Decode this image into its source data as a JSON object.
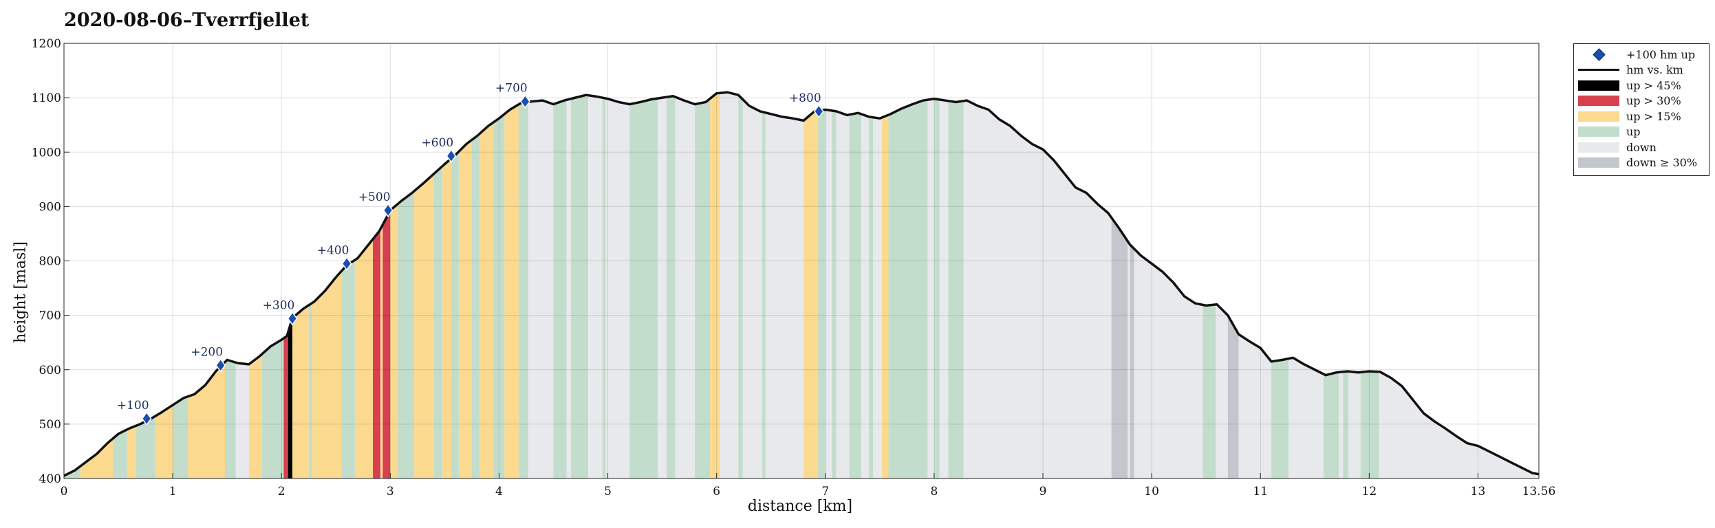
{
  "chart_data": {
    "type": "area",
    "title": "2020-08-06–Tverrfjellet",
    "xlabel": "distance [km]",
    "ylabel": "height [masl]",
    "xlim": [
      0,
      13.56
    ],
    "ylim": [
      400,
      1200
    ],
    "xticks": [
      0,
      1,
      2,
      3,
      4,
      5,
      6,
      7,
      8,
      9,
      10,
      11,
      12,
      13,
      13.56
    ],
    "xtick_labels": [
      "0",
      "1",
      "2",
      "3",
      "4",
      "5",
      "6",
      "7",
      "8",
      "9",
      "10",
      "11",
      "12",
      "13",
      "13.56"
    ],
    "yticks": [
      400,
      500,
      600,
      700,
      800,
      900,
      1000,
      1100,
      1200
    ],
    "ytick_labels": [
      "400",
      "500",
      "600",
      "700",
      "800",
      "900",
      "1000",
      "1100",
      "1200"
    ],
    "grid": true,
    "legend_position": "outside-top-right",
    "colors": {
      "profile": "#111111",
      "up_gt_45": "#000000",
      "up_gt_30": "#d6404f",
      "up_gt_15": "#fbd98e",
      "up": "#c2ddcc",
      "down": "#e8e9ec",
      "down_ge_30": "#c4c6ce",
      "marker": "#1a4fb0"
    },
    "legend": [
      {
        "key": "marker",
        "label": "+100 hm up",
        "kind": "marker"
      },
      {
        "key": "profile",
        "label": "hm vs. km",
        "kind": "line"
      },
      {
        "key": "up_gt_45",
        "label": "up > 45%",
        "kind": "box"
      },
      {
        "key": "up_gt_30",
        "label": "up > 30%",
        "kind": "box"
      },
      {
        "key": "up_gt_15",
        "label": "up > 15%",
        "kind": "box"
      },
      {
        "key": "up",
        "label": "up",
        "kind": "box"
      },
      {
        "key": "down",
        "label": "down",
        "kind": "box"
      },
      {
        "key": "down_ge_30",
        "label": "down ≥ 30%",
        "kind": "box"
      }
    ],
    "profile": [
      [
        0,
        405
      ],
      [
        0.1,
        415
      ],
      [
        0.2,
        430
      ],
      [
        0.3,
        445
      ],
      [
        0.4,
        465
      ],
      [
        0.5,
        482
      ],
      [
        0.6,
        492
      ],
      [
        0.7,
        500
      ],
      [
        0.8,
        510
      ],
      [
        0.9,
        522
      ],
      [
        1.0,
        535
      ],
      [
        1.1,
        548
      ],
      [
        1.2,
        555
      ],
      [
        1.3,
        572
      ],
      [
        1.4,
        598
      ],
      [
        1.5,
        618
      ],
      [
        1.6,
        612
      ],
      [
        1.7,
        610
      ],
      [
        1.8,
        625
      ],
      [
        1.9,
        643
      ],
      [
        2.0,
        655
      ],
      [
        2.05,
        662
      ],
      [
        2.1,
        695
      ],
      [
        2.2,
        712
      ],
      [
        2.3,
        725
      ],
      [
        2.4,
        745
      ],
      [
        2.5,
        770
      ],
      [
        2.6,
        792
      ],
      [
        2.7,
        805
      ],
      [
        2.8,
        830
      ],
      [
        2.9,
        855
      ],
      [
        3.0,
        893
      ],
      [
        3.1,
        910
      ],
      [
        3.2,
        925
      ],
      [
        3.3,
        942
      ],
      [
        3.4,
        960
      ],
      [
        3.5,
        978
      ],
      [
        3.6,
        995
      ],
      [
        3.7,
        1015
      ],
      [
        3.8,
        1030
      ],
      [
        3.9,
        1048
      ],
      [
        4.0,
        1062
      ],
      [
        4.1,
        1078
      ],
      [
        4.2,
        1090
      ],
      [
        4.3,
        1093
      ],
      [
        4.4,
        1095
      ],
      [
        4.5,
        1088
      ],
      [
        4.6,
        1095
      ],
      [
        4.7,
        1100
      ],
      [
        4.8,
        1105
      ],
      [
        4.9,
        1102
      ],
      [
        5.0,
        1098
      ],
      [
        5.1,
        1092
      ],
      [
        5.2,
        1088
      ],
      [
        5.3,
        1092
      ],
      [
        5.4,
        1097
      ],
      [
        5.5,
        1100
      ],
      [
        5.6,
        1103
      ],
      [
        5.7,
        1095
      ],
      [
        5.8,
        1088
      ],
      [
        5.9,
        1092
      ],
      [
        6.0,
        1108
      ],
      [
        6.1,
        1110
      ],
      [
        6.2,
        1105
      ],
      [
        6.3,
        1085
      ],
      [
        6.4,
        1075
      ],
      [
        6.5,
        1070
      ],
      [
        6.6,
        1065
      ],
      [
        6.7,
        1062
      ],
      [
        6.8,
        1058
      ],
      [
        6.9,
        1075
      ],
      [
        7.0,
        1078
      ],
      [
        7.1,
        1075
      ],
      [
        7.2,
        1068
      ],
      [
        7.3,
        1072
      ],
      [
        7.4,
        1065
      ],
      [
        7.5,
        1062
      ],
      [
        7.6,
        1070
      ],
      [
        7.7,
        1080
      ],
      [
        7.8,
        1088
      ],
      [
        7.9,
        1095
      ],
      [
        8.0,
        1098
      ],
      [
        8.1,
        1095
      ],
      [
        8.2,
        1092
      ],
      [
        8.3,
        1095
      ],
      [
        8.4,
        1085
      ],
      [
        8.5,
        1078
      ],
      [
        8.6,
        1060
      ],
      [
        8.7,
        1048
      ],
      [
        8.8,
        1030
      ],
      [
        8.9,
        1015
      ],
      [
        9.0,
        1005
      ],
      [
        9.1,
        985
      ],
      [
        9.2,
        960
      ],
      [
        9.3,
        935
      ],
      [
        9.4,
        925
      ],
      [
        9.5,
        905
      ],
      [
        9.6,
        888
      ],
      [
        9.7,
        860
      ],
      [
        9.8,
        830
      ],
      [
        9.9,
        810
      ],
      [
        10.0,
        795
      ],
      [
        10.1,
        780
      ],
      [
        10.2,
        760
      ],
      [
        10.3,
        735
      ],
      [
        10.4,
        722
      ],
      [
        10.5,
        718
      ],
      [
        10.6,
        720
      ],
      [
        10.7,
        700
      ],
      [
        10.8,
        665
      ],
      [
        10.9,
        652
      ],
      [
        11.0,
        640
      ],
      [
        11.1,
        615
      ],
      [
        11.2,
        618
      ],
      [
        11.3,
        622
      ],
      [
        11.4,
        610
      ],
      [
        11.5,
        600
      ],
      [
        11.6,
        590
      ],
      [
        11.7,
        595
      ],
      [
        11.8,
        597
      ],
      [
        11.9,
        595
      ],
      [
        12.0,
        597
      ],
      [
        12.1,
        596
      ],
      [
        12.2,
        585
      ],
      [
        12.3,
        570
      ],
      [
        12.4,
        545
      ],
      [
        12.5,
        520
      ],
      [
        12.6,
        505
      ],
      [
        12.7,
        492
      ],
      [
        12.8,
        478
      ],
      [
        12.9,
        465
      ],
      [
        13.0,
        460
      ],
      [
        13.1,
        450
      ],
      [
        13.2,
        440
      ],
      [
        13.3,
        430
      ],
      [
        13.4,
        420
      ],
      [
        13.5,
        410
      ],
      [
        13.56,
        408
      ]
    ],
    "segments": [
      {
        "from": 0,
        "to": 0.15,
        "cat": "up"
      },
      {
        "from": 0.15,
        "to": 0.45,
        "cat": "up_gt_15"
      },
      {
        "from": 0.45,
        "to": 0.58,
        "cat": "up"
      },
      {
        "from": 0.58,
        "to": 0.66,
        "cat": "up_gt_15"
      },
      {
        "from": 0.66,
        "to": 0.84,
        "cat": "up"
      },
      {
        "from": 0.84,
        "to": 1.0,
        "cat": "up_gt_15"
      },
      {
        "from": 1.0,
        "to": 1.14,
        "cat": "up"
      },
      {
        "from": 1.14,
        "to": 1.48,
        "cat": "up_gt_15"
      },
      {
        "from": 1.48,
        "to": 1.58,
        "cat": "up"
      },
      {
        "from": 1.58,
        "to": 1.7,
        "cat": "down"
      },
      {
        "from": 1.7,
        "to": 1.82,
        "cat": "up_gt_15"
      },
      {
        "from": 1.82,
        "to": 2.02,
        "cat": "up"
      },
      {
        "from": 2.02,
        "to": 2.06,
        "cat": "up_gt_30"
      },
      {
        "from": 2.06,
        "to": 2.1,
        "cat": "up_gt_45"
      },
      {
        "from": 2.1,
        "to": 2.25,
        "cat": "up_gt_15"
      },
      {
        "from": 2.25,
        "to": 2.28,
        "cat": "up"
      },
      {
        "from": 2.28,
        "to": 2.55,
        "cat": "up_gt_15"
      },
      {
        "from": 2.55,
        "to": 2.68,
        "cat": "up"
      },
      {
        "from": 2.68,
        "to": 2.84,
        "cat": "up_gt_15"
      },
      {
        "from": 2.84,
        "to": 2.91,
        "cat": "up_gt_30"
      },
      {
        "from": 2.91,
        "to": 2.93,
        "cat": "up_gt_15"
      },
      {
        "from": 2.93,
        "to": 3.0,
        "cat": "up_gt_30"
      },
      {
        "from": 3.0,
        "to": 3.07,
        "cat": "up_gt_15"
      },
      {
        "from": 3.07,
        "to": 3.22,
        "cat": "up"
      },
      {
        "from": 3.22,
        "to": 3.4,
        "cat": "up_gt_15"
      },
      {
        "from": 3.4,
        "to": 3.48,
        "cat": "up"
      },
      {
        "from": 3.48,
        "to": 3.56,
        "cat": "up_gt_15"
      },
      {
        "from": 3.56,
        "to": 3.63,
        "cat": "up"
      },
      {
        "from": 3.63,
        "to": 3.75,
        "cat": "up_gt_15"
      },
      {
        "from": 3.75,
        "to": 3.82,
        "cat": "up"
      },
      {
        "from": 3.82,
        "to": 3.95,
        "cat": "up_gt_15"
      },
      {
        "from": 3.95,
        "to": 4.05,
        "cat": "up"
      },
      {
        "from": 4.05,
        "to": 4.18,
        "cat": "up_gt_15"
      },
      {
        "from": 4.18,
        "to": 4.27,
        "cat": "up"
      },
      {
        "from": 4.27,
        "to": 4.5,
        "cat": "down"
      },
      {
        "from": 4.5,
        "to": 4.62,
        "cat": "up"
      },
      {
        "from": 4.62,
        "to": 4.66,
        "cat": "down"
      },
      {
        "from": 4.66,
        "to": 4.82,
        "cat": "up"
      },
      {
        "from": 4.82,
        "to": 4.95,
        "cat": "down"
      },
      {
        "from": 4.95,
        "to": 4.98,
        "cat": "up"
      },
      {
        "from": 4.98,
        "to": 5.2,
        "cat": "down"
      },
      {
        "from": 5.2,
        "to": 5.46,
        "cat": "up"
      },
      {
        "from": 5.46,
        "to": 5.54,
        "cat": "down"
      },
      {
        "from": 5.54,
        "to": 5.62,
        "cat": "up"
      },
      {
        "from": 5.62,
        "to": 5.8,
        "cat": "down"
      },
      {
        "from": 5.8,
        "to": 5.94,
        "cat": "up"
      },
      {
        "from": 5.94,
        "to": 6.03,
        "cat": "up_gt_15"
      },
      {
        "from": 6.03,
        "to": 6.2,
        "cat": "down"
      },
      {
        "from": 6.2,
        "to": 6.24,
        "cat": "up"
      },
      {
        "from": 6.24,
        "to": 6.42,
        "cat": "down"
      },
      {
        "from": 6.42,
        "to": 6.45,
        "cat": "up"
      },
      {
        "from": 6.45,
        "to": 6.8,
        "cat": "down"
      },
      {
        "from": 6.8,
        "to": 6.93,
        "cat": "up_gt_15"
      },
      {
        "from": 6.93,
        "to": 7.0,
        "cat": "up"
      },
      {
        "from": 7.0,
        "to": 7.06,
        "cat": "down"
      },
      {
        "from": 7.06,
        "to": 7.1,
        "cat": "up"
      },
      {
        "from": 7.1,
        "to": 7.22,
        "cat": "down"
      },
      {
        "from": 7.22,
        "to": 7.33,
        "cat": "up"
      },
      {
        "from": 7.33,
        "to": 7.4,
        "cat": "down"
      },
      {
        "from": 7.4,
        "to": 7.44,
        "cat": "up"
      },
      {
        "from": 7.44,
        "to": 7.52,
        "cat": "down"
      },
      {
        "from": 7.52,
        "to": 7.58,
        "cat": "up_gt_15"
      },
      {
        "from": 7.58,
        "to": 7.94,
        "cat": "up"
      },
      {
        "from": 7.94,
        "to": 8.0,
        "cat": "down"
      },
      {
        "from": 8.0,
        "to": 8.05,
        "cat": "up"
      },
      {
        "from": 8.05,
        "to": 8.13,
        "cat": "down"
      },
      {
        "from": 8.13,
        "to": 8.27,
        "cat": "up"
      },
      {
        "from": 8.27,
        "to": 9.63,
        "cat": "down"
      },
      {
        "from": 9.63,
        "to": 9.78,
        "cat": "down_ge_30"
      },
      {
        "from": 9.78,
        "to": 9.8,
        "cat": "down"
      },
      {
        "from": 9.8,
        "to": 9.84,
        "cat": "down_ge_30"
      },
      {
        "from": 9.84,
        "to": 10.47,
        "cat": "down"
      },
      {
        "from": 10.47,
        "to": 10.59,
        "cat": "up"
      },
      {
        "from": 10.59,
        "to": 10.7,
        "cat": "down"
      },
      {
        "from": 10.7,
        "to": 10.8,
        "cat": "down_ge_30"
      },
      {
        "from": 10.8,
        "to": 11.1,
        "cat": "down"
      },
      {
        "from": 11.1,
        "to": 11.26,
        "cat": "up"
      },
      {
        "from": 11.26,
        "to": 11.58,
        "cat": "down"
      },
      {
        "from": 11.58,
        "to": 11.72,
        "cat": "up"
      },
      {
        "from": 11.72,
        "to": 11.76,
        "cat": "down"
      },
      {
        "from": 11.76,
        "to": 11.81,
        "cat": "up"
      },
      {
        "from": 11.81,
        "to": 11.92,
        "cat": "down"
      },
      {
        "from": 11.92,
        "to": 12.09,
        "cat": "up"
      },
      {
        "from": 12.09,
        "to": 13.56,
        "cat": "down"
      }
    ],
    "markers": [
      {
        "x": 0.76,
        "y": 510,
        "label": "+100"
      },
      {
        "x": 1.44,
        "y": 608,
        "label": "+200"
      },
      {
        "x": 2.1,
        "y": 694,
        "label": "+300"
      },
      {
        "x": 2.6,
        "y": 795,
        "label": "+400"
      },
      {
        "x": 2.98,
        "y": 893,
        "label": "+500"
      },
      {
        "x": 3.56,
        "y": 993,
        "label": "+600"
      },
      {
        "x": 4.24,
        "y": 1093,
        "label": "+700"
      },
      {
        "x": 6.94,
        "y": 1075,
        "label": "+800"
      }
    ]
  }
}
